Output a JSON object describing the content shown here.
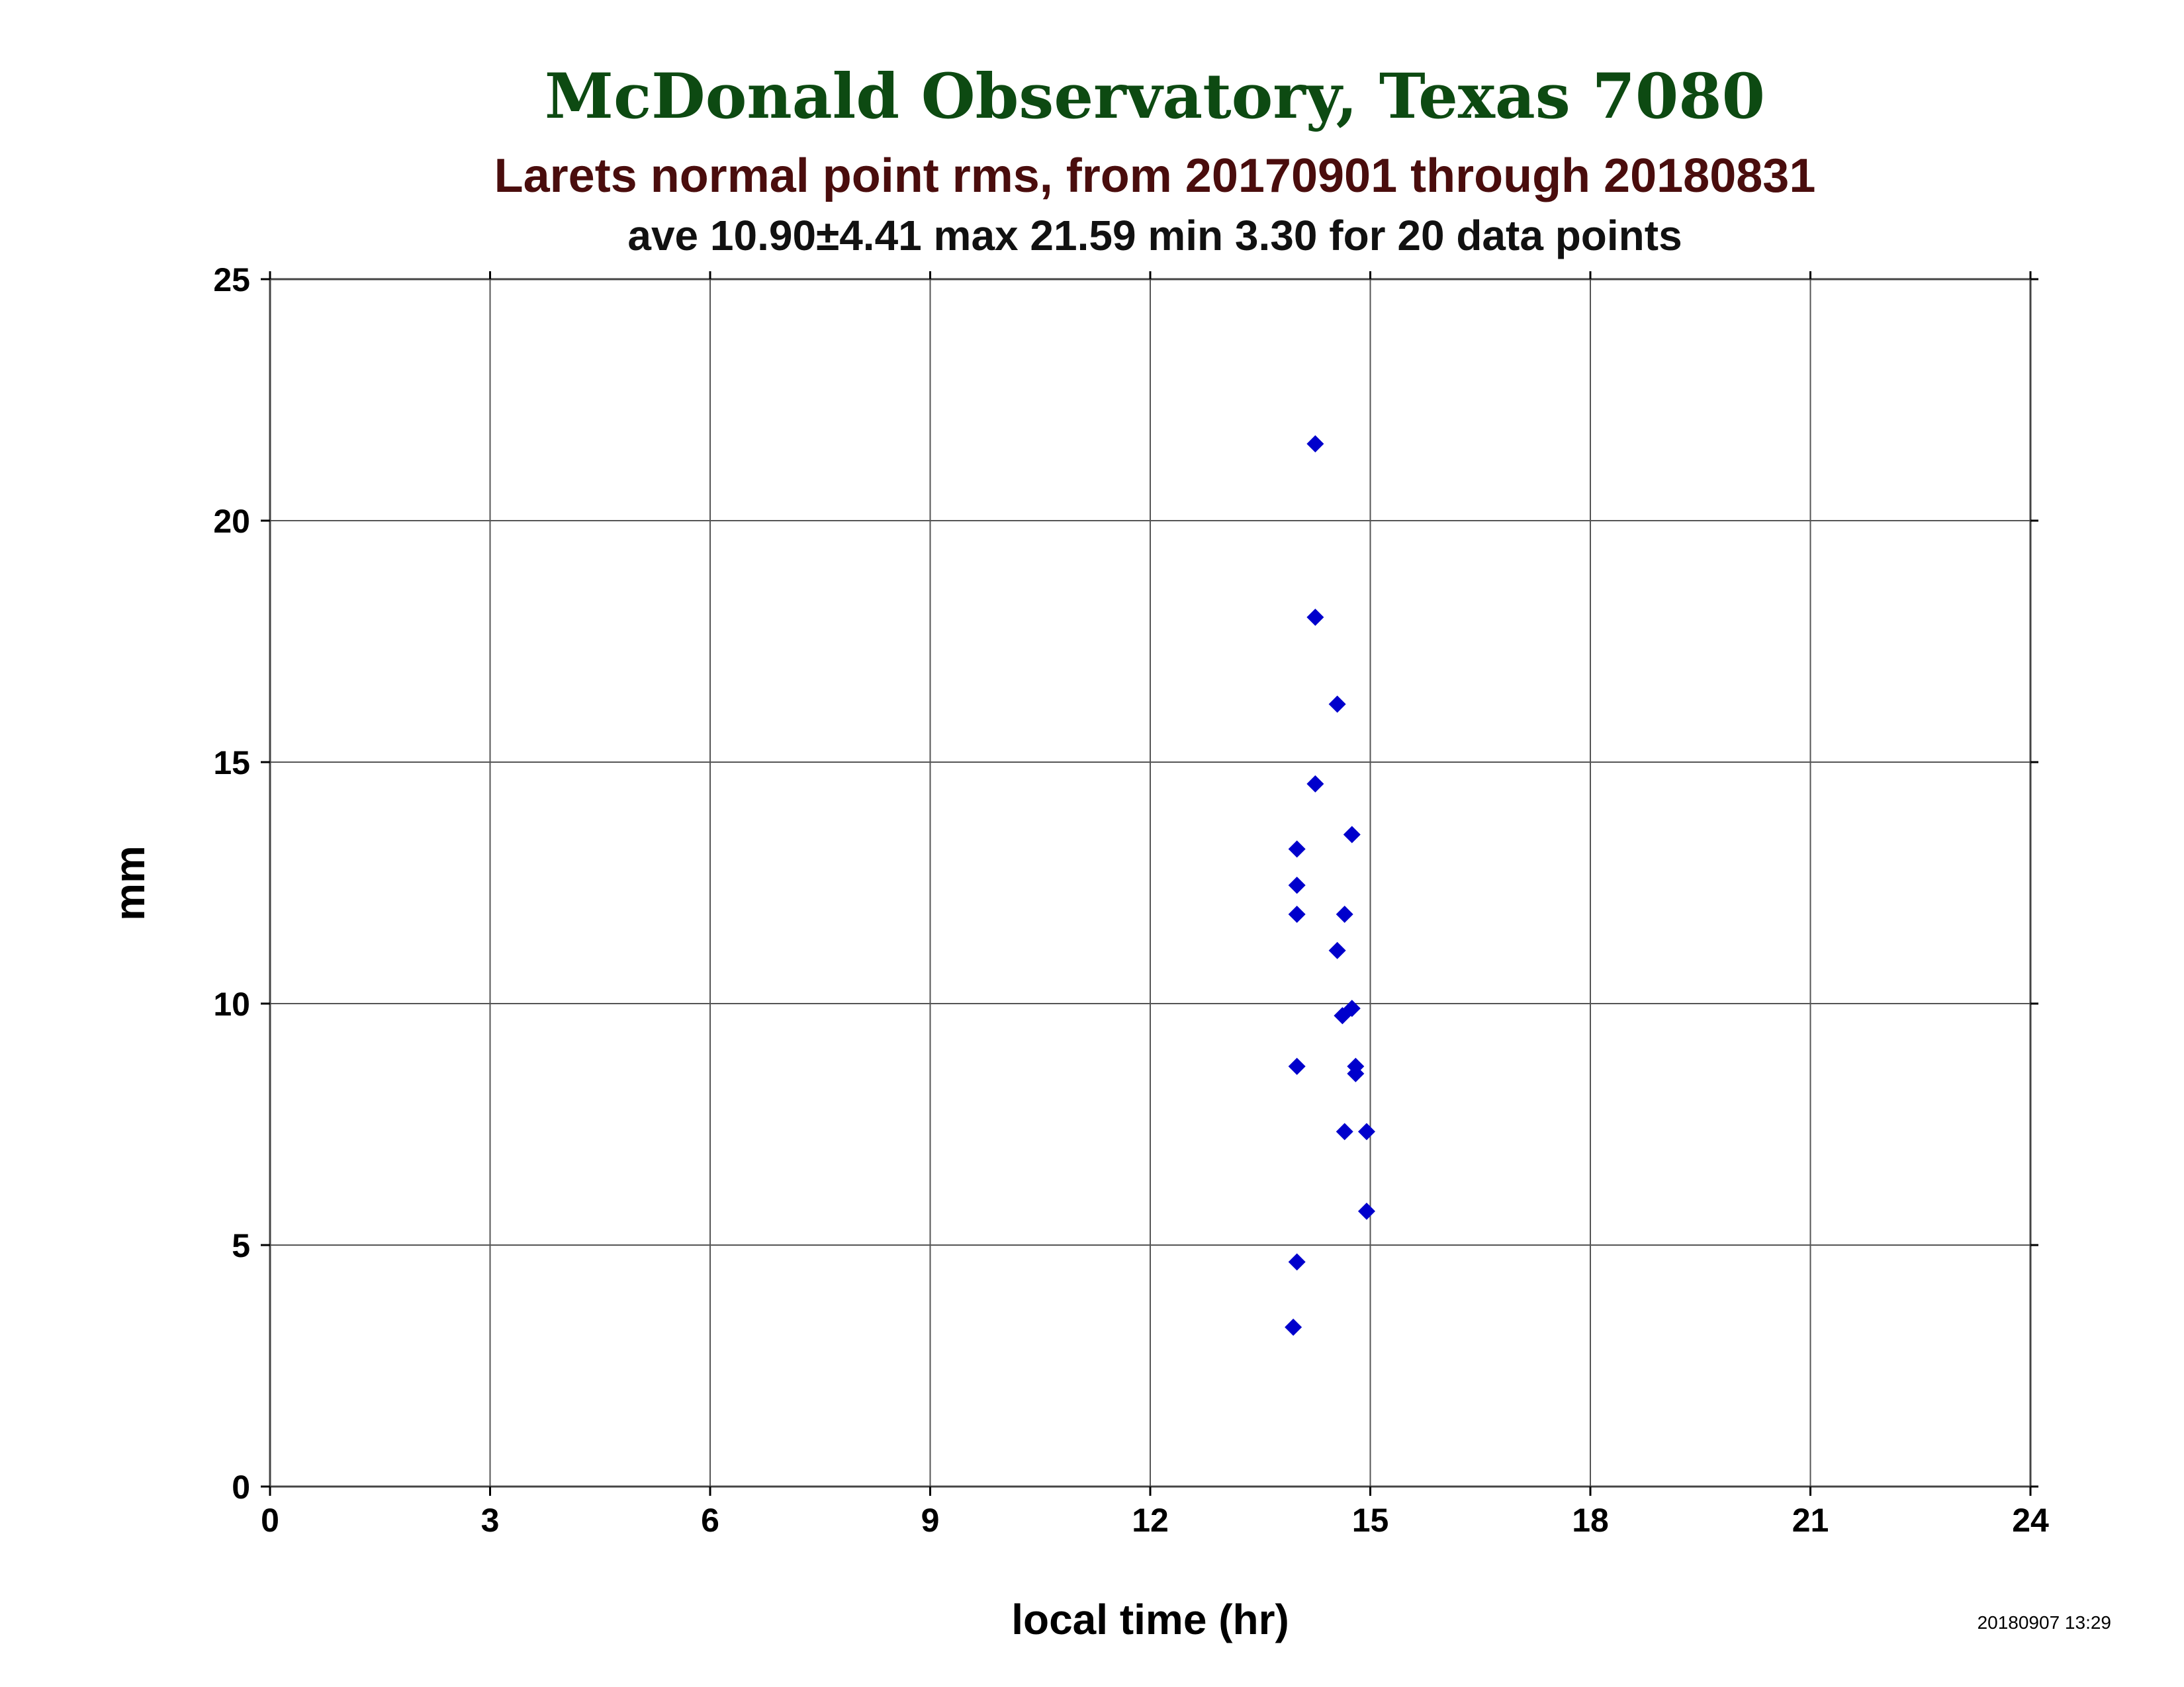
{
  "chart_data": {
    "type": "scatter",
    "title": "McDonald Observatory, Texas 7080",
    "subtitle": "Larets normal point rms, from 20170901 through 20180831",
    "stats_line": "ave 10.90±4.41 max 21.59 min 3.30 for 20 data points",
    "xlabel": "local time (hr)",
    "ylabel": "mm",
    "xlim": [
      0,
      24
    ],
    "ylim": [
      0,
      25
    ],
    "xticks": [
      0,
      3,
      6,
      9,
      12,
      15,
      18,
      21,
      24
    ],
    "yticks": [
      0,
      5,
      10,
      15,
      20,
      25
    ],
    "grid": true,
    "marker": "diamond",
    "marker_color": "#0000cc",
    "points": [
      {
        "x": 14.25,
        "y": 21.59
      },
      {
        "x": 14.25,
        "y": 18.0
      },
      {
        "x": 14.55,
        "y": 16.2
      },
      {
        "x": 14.25,
        "y": 14.55
      },
      {
        "x": 14.0,
        "y": 13.2
      },
      {
        "x": 14.75,
        "y": 13.5
      },
      {
        "x": 14.0,
        "y": 12.45
      },
      {
        "x": 14.0,
        "y": 11.85
      },
      {
        "x": 14.65,
        "y": 11.85
      },
      {
        "x": 14.55,
        "y": 11.1
      },
      {
        "x": 14.75,
        "y": 9.9
      },
      {
        "x": 14.62,
        "y": 9.75
      },
      {
        "x": 14.0,
        "y": 8.7
      },
      {
        "x": 14.8,
        "y": 8.7
      },
      {
        "x": 14.8,
        "y": 8.55
      },
      {
        "x": 14.65,
        "y": 7.35
      },
      {
        "x": 14.95,
        "y": 7.35
      },
      {
        "x": 14.95,
        "y": 5.7
      },
      {
        "x": 14.0,
        "y": 4.65
      },
      {
        "x": 13.95,
        "y": 3.3
      }
    ]
  },
  "timestamp": "20180907 13:29"
}
